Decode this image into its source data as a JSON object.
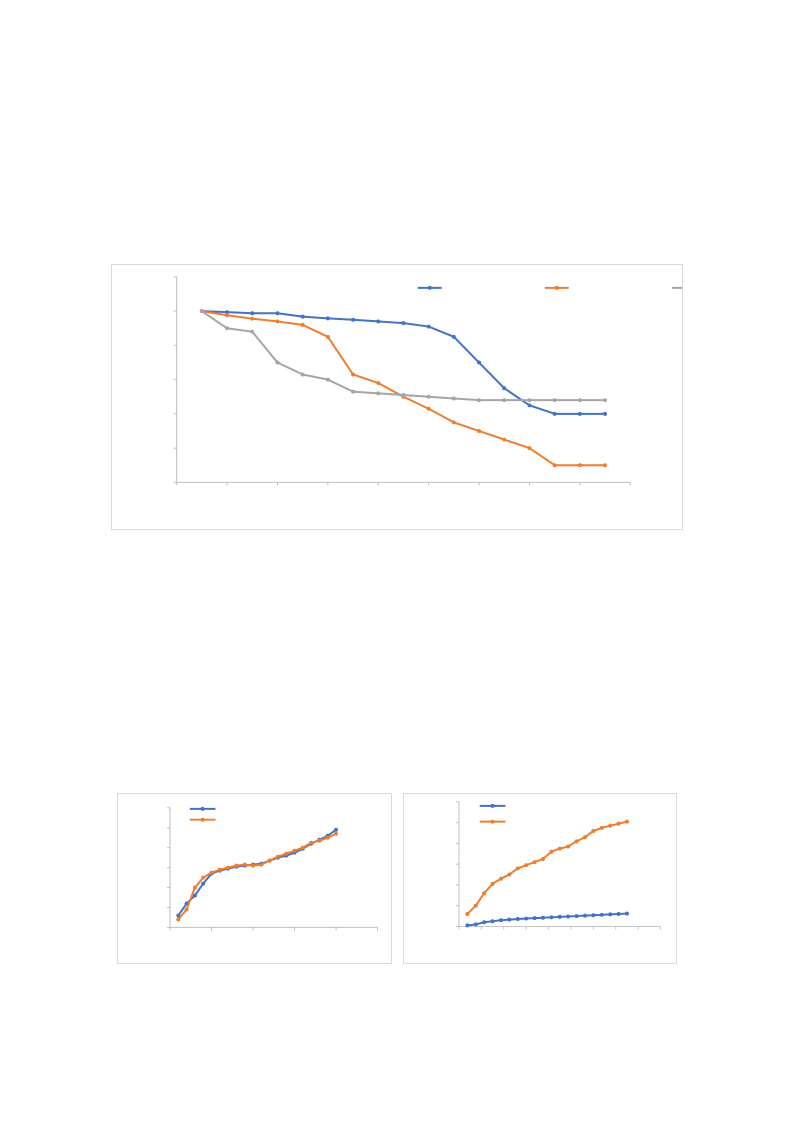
{
  "chart_data": [
    {
      "type": "line",
      "x": [
        1,
        2,
        3,
        4,
        5,
        6,
        7,
        8,
        9,
        10,
        11,
        12,
        13,
        14,
        15,
        16,
        17
      ],
      "ylim": [
        0,
        6
      ],
      "xlim": [
        0,
        18
      ],
      "y_tick_count": 7,
      "x_tick_count": 10,
      "grid": false,
      "legend_position": "top-right",
      "series": [
        {
          "color": "#4472C4",
          "values": [
            5.0,
            4.97,
            4.94,
            4.94,
            4.84,
            4.79,
            4.75,
            4.7,
            4.65,
            4.55,
            4.25,
            3.5,
            2.75,
            2.25,
            2.0,
            2.0,
            2.0
          ]
        },
        {
          "color": "#ED7D31",
          "values": [
            5.0,
            4.88,
            4.78,
            4.7,
            4.6,
            4.25,
            3.15,
            2.9,
            2.5,
            2.15,
            1.75,
            1.5,
            1.25,
            1.0,
            0.5,
            0.5,
            0.5
          ]
        },
        {
          "color": "#A5A5A5",
          "values": [
            5.0,
            4.5,
            4.4,
            3.5,
            3.15,
            3.0,
            2.65,
            2.6,
            2.55,
            2.5,
            2.45,
            2.4,
            2.4,
            2.4,
            2.4,
            2.4,
            2.4
          ]
        }
      ]
    },
    {
      "type": "line",
      "x": [
        1,
        2,
        3,
        4,
        5,
        6,
        7,
        8,
        9,
        10,
        11,
        12,
        13,
        14,
        15,
        16,
        17,
        18,
        19,
        20
      ],
      "ylim": [
        0,
        6
      ],
      "xlim": [
        0,
        25
      ],
      "y_tick_count": 7,
      "x_tick_count": 6,
      "grid": false,
      "legend_position": "top-left",
      "series": [
        {
          "color": "#4472C4",
          "values": [
            0.6,
            1.2,
            1.6,
            2.2,
            2.7,
            2.85,
            2.95,
            3.05,
            3.1,
            3.15,
            3.2,
            3.35,
            3.5,
            3.6,
            3.75,
            3.95,
            4.2,
            4.4,
            4.6,
            4.9
          ]
        },
        {
          "color": "#ED7D31",
          "values": [
            0.4,
            0.9,
            2.0,
            2.5,
            2.75,
            2.9,
            3.0,
            3.1,
            3.15,
            3.1,
            3.15,
            3.35,
            3.55,
            3.7,
            3.85,
            4.0,
            4.25,
            4.35,
            4.5,
            4.7
          ]
        }
      ]
    },
    {
      "type": "line",
      "x": [
        1,
        2,
        3,
        4,
        5,
        6,
        7,
        8,
        9,
        10,
        11,
        12,
        13,
        14,
        15,
        16,
        17,
        18,
        19,
        20
      ],
      "ylim": [
        0,
        6
      ],
      "xlim": [
        0,
        24
      ],
      "y_tick_count": 7,
      "x_tick_count": 10,
      "grid": false,
      "legend_position": "top-left",
      "series": [
        {
          "color": "#4472C4",
          "values": [
            0.05,
            0.1,
            0.2,
            0.25,
            0.3,
            0.33,
            0.36,
            0.38,
            0.4,
            0.42,
            0.44,
            0.46,
            0.48,
            0.5,
            0.52,
            0.54,
            0.56,
            0.58,
            0.6,
            0.62
          ]
        },
        {
          "color": "#ED7D31",
          "values": [
            0.6,
            1.0,
            1.6,
            2.05,
            2.3,
            2.5,
            2.8,
            2.95,
            3.1,
            3.25,
            3.6,
            3.75,
            3.85,
            4.1,
            4.3,
            4.6,
            4.75,
            4.85,
            4.95,
            5.05
          ]
        }
      ]
    }
  ]
}
